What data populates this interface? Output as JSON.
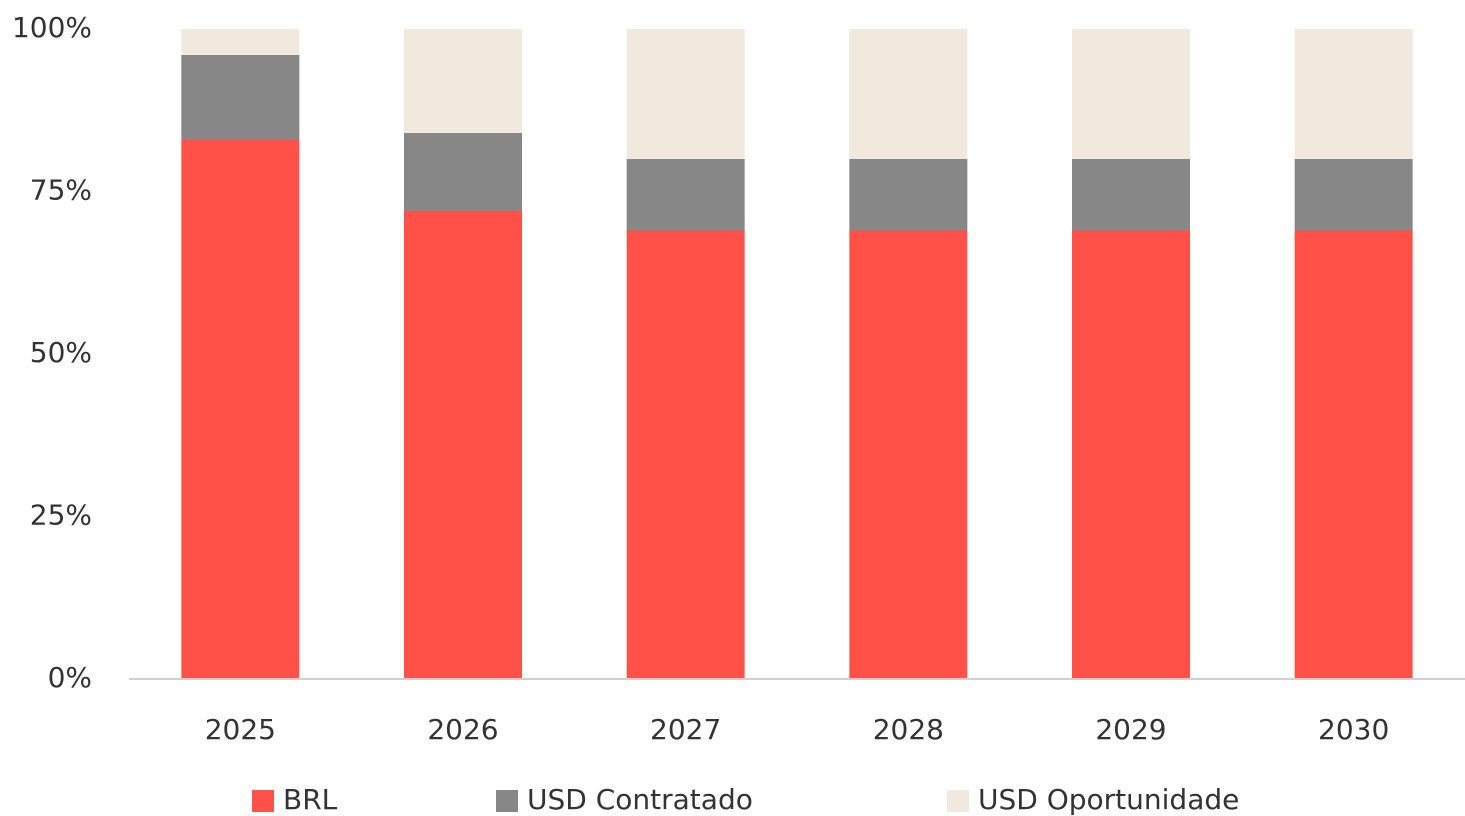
{
  "chart_data": {
    "type": "stacked_bar",
    "categories": [
      "2025",
      "2026",
      "2027",
      "2028",
      "2029",
      "2030"
    ],
    "series": [
      {
        "name": "BRL",
        "color": "#ff5148",
        "values": [
          83,
          72,
          69,
          69,
          69,
          69
        ]
      },
      {
        "name": "USD Contratado",
        "color": "#878787",
        "values": [
          13,
          12,
          11,
          11,
          11,
          11
        ]
      },
      {
        "name": "USD Oportunidade",
        "color": "#f2e9de",
        "values": [
          4,
          16,
          20,
          20,
          20,
          20
        ]
      }
    ],
    "ylim": [
      0,
      100
    ],
    "yticks": [
      {
        "value": 0,
        "label": "0%"
      },
      {
        "value": 25,
        "label": "25%"
      },
      {
        "value": 50,
        "label": "50%"
      },
      {
        "value": 75,
        "label": "75%"
      },
      {
        "value": 100,
        "label": "100%"
      }
    ],
    "legend": "bottom"
  }
}
